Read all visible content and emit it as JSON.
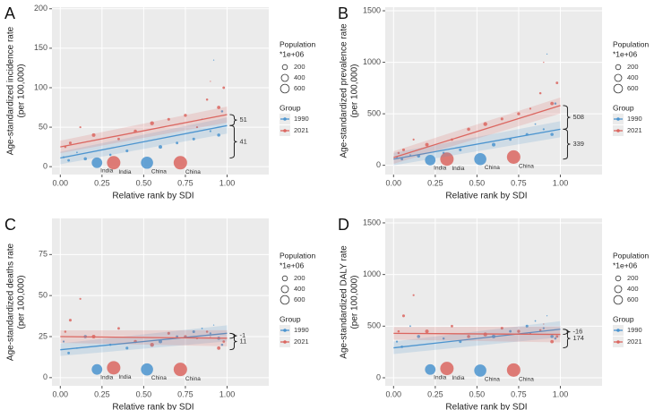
{
  "chart_data": [
    {
      "type": "scatter",
      "panel": "A",
      "ylabel": [
        "Age-standardized incidence rate",
        "(per 100,000)"
      ],
      "xlabel": "Relative rank by SDI",
      "xlim": [
        -0.05,
        1.25
      ],
      "ylim": [
        -10,
        202
      ],
      "xticks": [
        {
          "value": 0,
          "label": "0.00"
        },
        {
          "value": 0.25,
          "label": "0.25"
        },
        {
          "value": 0.5,
          "label": "0.50"
        },
        {
          "value": 0.75,
          "label": "0.75"
        },
        {
          "value": 1,
          "label": "1.00"
        }
      ],
      "yticks": [
        0,
        50,
        100,
        150,
        200
      ],
      "grid": true,
      "size_legend": {
        "title": [
          "Population",
          "*1e+06"
        ],
        "values": [
          200,
          400,
          600
        ]
      },
      "legend_title": "Group",
      "bracket_labels": [
        51,
        41
      ],
      "series": [
        {
          "name": "1990",
          "color": "#4b94cf",
          "x": [
            0.22,
            0.52,
            0.02,
            0.05,
            0.1,
            0.15,
            0.3,
            0.4,
            0.6,
            0.7,
            0.8,
            0.85,
            0.9,
            0.92,
            0.95,
            0.97
          ],
          "values": [
            5,
            5,
            12,
            8,
            18,
            10,
            15,
            20,
            25,
            30,
            35,
            60,
            45,
            135,
            40,
            70
          ],
          "sizes": [
            870,
            1150,
            30,
            50,
            20,
            80,
            40,
            60,
            100,
            50,
            60,
            20,
            30,
            10,
            80,
            40
          ],
          "labels": [
            "India",
            "China",
            null,
            null,
            null,
            null,
            null,
            null,
            null,
            null,
            null,
            null,
            null,
            null,
            null,
            null
          ],
          "fit": {
            "x": [
              0,
              1
            ],
            "values": [
              11,
              52
            ]
          }
        },
        {
          "name": "2021",
          "color": "#db6660",
          "x": [
            0.32,
            0.72,
            0.03,
            0.06,
            0.12,
            0.2,
            0.35,
            0.45,
            0.55,
            0.65,
            0.75,
            0.82,
            0.88,
            0.9,
            0.95,
            0.98
          ],
          "values": [
            5,
            5,
            25,
            30,
            50,
            40,
            35,
            45,
            55,
            60,
            65,
            50,
            85,
            108,
            75,
            100
          ],
          "sizes": [
            1400,
            1410,
            40,
            60,
            30,
            100,
            50,
            80,
            120,
            60,
            70,
            30,
            40,
            10,
            90,
            50
          ],
          "labels": [
            "India",
            "China",
            null,
            null,
            null,
            null,
            null,
            null,
            null,
            null,
            null,
            null,
            null,
            null,
            null,
            null
          ],
          "fit": {
            "x": [
              0,
              1
            ],
            "values": [
              25,
              66
            ]
          }
        }
      ]
    },
    {
      "type": "scatter",
      "panel": "B",
      "ylabel": [
        "Age-standardized prevalence rate",
        "(per 100,000)"
      ],
      "xlabel": "Relative rank by SDI",
      "xlim": [
        -0.05,
        1.25
      ],
      "ylim": [
        -90,
        1535
      ],
      "xticks": [
        {
          "value": 0,
          "label": "0.00"
        },
        {
          "value": 0.25,
          "label": "0.25"
        },
        {
          "value": 0.5,
          "label": "0.50"
        },
        {
          "value": 0.75,
          "label": "0.75"
        },
        {
          "value": 1,
          "label": "1.00"
        }
      ],
      "yticks": [
        0,
        500,
        1000,
        1500
      ],
      "grid": true,
      "size_legend": {
        "title": [
          "Population",
          "*1e+06"
        ],
        "values": [
          200,
          400,
          600
        ]
      },
      "legend_title": "Group",
      "bracket_labels": [
        508,
        339
      ],
      "series": [
        {
          "name": "1990",
          "color": "#4b94cf",
          "x": [
            0.22,
            0.52,
            0.02,
            0.05,
            0.1,
            0.15,
            0.3,
            0.4,
            0.6,
            0.7,
            0.8,
            0.85,
            0.9,
            0.92,
            0.95,
            0.97
          ],
          "values": [
            50,
            60,
            80,
            60,
            100,
            90,
            120,
            150,
            200,
            250,
            300,
            400,
            350,
            1080,
            300,
            600
          ],
          "sizes": [
            870,
            1150,
            30,
            50,
            20,
            80,
            40,
            60,
            100,
            50,
            60,
            20,
            30,
            10,
            80,
            40
          ],
          "labels": [
            "India",
            "China",
            null,
            null,
            null,
            null,
            null,
            null,
            null,
            null,
            null,
            null,
            null,
            null,
            null,
            null
          ],
          "fit": {
            "x": [
              0,
              1
            ],
            "values": [
              60,
              350
            ]
          }
        },
        {
          "name": "2021",
          "color": "#db6660",
          "x": [
            0.32,
            0.72,
            0.03,
            0.06,
            0.12,
            0.2,
            0.35,
            0.45,
            0.55,
            0.65,
            0.75,
            0.82,
            0.88,
            0.9,
            0.95,
            0.98
          ],
          "values": [
            60,
            80,
            120,
            150,
            250,
            200,
            250,
            350,
            400,
            450,
            500,
            550,
            700,
            1000,
            600,
            800
          ],
          "sizes": [
            1400,
            1410,
            40,
            60,
            30,
            100,
            50,
            80,
            120,
            60,
            70,
            30,
            40,
            10,
            90,
            50
          ],
          "labels": [
            "India",
            "China",
            null,
            null,
            null,
            null,
            null,
            null,
            null,
            null,
            null,
            null,
            null,
            null,
            null,
            null
          ],
          "fit": {
            "x": [
              0,
              1
            ],
            "values": [
              75,
              580
            ]
          }
        }
      ]
    },
    {
      "type": "scatter",
      "panel": "C",
      "ylabel": [
        "Age-standardized deaths rate",
        "(per 100,000)"
      ],
      "xlabel": "Relative rank by SDI",
      "xlim": [
        -0.05,
        1.25
      ],
      "ylim": [
        -5,
        97
      ],
      "xticks": [
        {
          "value": 0,
          "label": "0.00"
        },
        {
          "value": 0.25,
          "label": "0.25"
        },
        {
          "value": 0.5,
          "label": "0.50"
        },
        {
          "value": 0.75,
          "label": "0.75"
        },
        {
          "value": 1,
          "label": "1.00"
        }
      ],
      "yticks": [
        0,
        25,
        50,
        75
      ],
      "grid": true,
      "size_legend": {
        "title": [
          "Population",
          "*1e+06"
        ],
        "values": [
          200,
          400,
          600
        ]
      },
      "legend_title": "Group",
      "bracket_labels": [
        -1,
        11
      ],
      "series": [
        {
          "name": "1990",
          "color": "#4b94cf",
          "x": [
            0.22,
            0.52,
            0.02,
            0.05,
            0.1,
            0.15,
            0.3,
            0.4,
            0.6,
            0.7,
            0.8,
            0.85,
            0.9,
            0.92,
            0.95,
            0.97
          ],
          "values": [
            5,
            5,
            22,
            15,
            18,
            25,
            20,
            18,
            22,
            25,
            28,
            30,
            27,
            32,
            24,
            20
          ],
          "sizes": [
            870,
            1150,
            30,
            50,
            20,
            80,
            40,
            60,
            100,
            50,
            60,
            20,
            30,
            10,
            80,
            40
          ],
          "labels": [
            "India",
            "China",
            null,
            null,
            null,
            null,
            null,
            null,
            null,
            null,
            null,
            null,
            null,
            null,
            null,
            null
          ],
          "fit": {
            "x": [
              0,
              1
            ],
            "values": [
              17,
              27
            ]
          }
        },
        {
          "name": "2021",
          "color": "#db6660",
          "x": [
            0.32,
            0.72,
            0.03,
            0.06,
            0.12,
            0.2,
            0.35,
            0.45,
            0.55,
            0.65,
            0.75,
            0.82,
            0.88,
            0.9,
            0.95,
            0.98
          ],
          "values": [
            6,
            5,
            28,
            35,
            48,
            25,
            30,
            22,
            20,
            27,
            25,
            24,
            28,
            25,
            18,
            22
          ],
          "sizes": [
            1400,
            1410,
            40,
            60,
            30,
            100,
            50,
            80,
            120,
            60,
            70,
            30,
            40,
            10,
            90,
            50
          ],
          "labels": [
            "India",
            "China",
            null,
            null,
            null,
            null,
            null,
            null,
            null,
            null,
            null,
            null,
            null,
            null,
            null,
            null
          ],
          "fit": {
            "x": [
              0,
              1
            ],
            "values": [
              25,
              24
            ]
          }
        }
      ]
    },
    {
      "type": "scatter",
      "panel": "D",
      "ylabel": [
        "Age-standardized DALY rate",
        "(per 100,000)"
      ],
      "xlabel": "Relative rank by SDI",
      "xlim": [
        -0.05,
        1.25
      ],
      "ylim": [
        -78,
        1543
      ],
      "xticks": [
        {
          "value": 0,
          "label": "0.00"
        },
        {
          "value": 0.25,
          "label": "0.25"
        },
        {
          "value": 0.5,
          "label": "0.50"
        },
        {
          "value": 0.75,
          "label": "0.75"
        },
        {
          "value": 1,
          "label": "1.00"
        }
      ],
      "yticks": [
        0,
        500,
        1000,
        1500
      ],
      "grid": true,
      "size_legend": {
        "title": [
          "Population",
          "*1e+06"
        ],
        "values": [
          200,
          400,
          600
        ]
      },
      "legend_title": "Group",
      "bracket_labels": [
        -16,
        174
      ],
      "series": [
        {
          "name": "1990",
          "color": "#4b94cf",
          "x": [
            0.22,
            0.52,
            0.02,
            0.05,
            0.1,
            0.15,
            0.3,
            0.4,
            0.6,
            0.7,
            0.8,
            0.85,
            0.9,
            0.92,
            0.95,
            0.97
          ],
          "values": [
            80,
            70,
            350,
            300,
            500,
            400,
            380,
            350,
            400,
            450,
            500,
            550,
            480,
            600,
            400,
            380
          ],
          "sizes": [
            870,
            1150,
            30,
            50,
            20,
            80,
            40,
            60,
            100,
            50,
            60,
            20,
            30,
            10,
            80,
            40
          ],
          "labels": [
            "India",
            "China",
            null,
            null,
            null,
            null,
            null,
            null,
            null,
            null,
            null,
            null,
            null,
            null,
            null,
            null
          ],
          "fit": {
            "x": [
              0,
              1
            ],
            "values": [
              290,
              470
            ]
          }
        },
        {
          "name": "2021",
          "color": "#db6660",
          "x": [
            0.32,
            0.72,
            0.03,
            0.06,
            0.12,
            0.2,
            0.35,
            0.45,
            0.55,
            0.65,
            0.75,
            0.82,
            0.88,
            0.9,
            0.95,
            0.98
          ],
          "values": [
            90,
            75,
            450,
            600,
            800,
            450,
            500,
            400,
            420,
            480,
            450,
            430,
            460,
            520,
            350,
            400
          ],
          "sizes": [
            1400,
            1410,
            40,
            60,
            30,
            100,
            50,
            80,
            120,
            60,
            70,
            30,
            40,
            10,
            90,
            50
          ],
          "labels": [
            "India",
            "China",
            null,
            null,
            null,
            null,
            null,
            null,
            null,
            null,
            null,
            null,
            null,
            null,
            null,
            null
          ],
          "fit": {
            "x": [
              0,
              1
            ],
            "values": [
              430,
              420
            ]
          }
        }
      ]
    }
  ]
}
